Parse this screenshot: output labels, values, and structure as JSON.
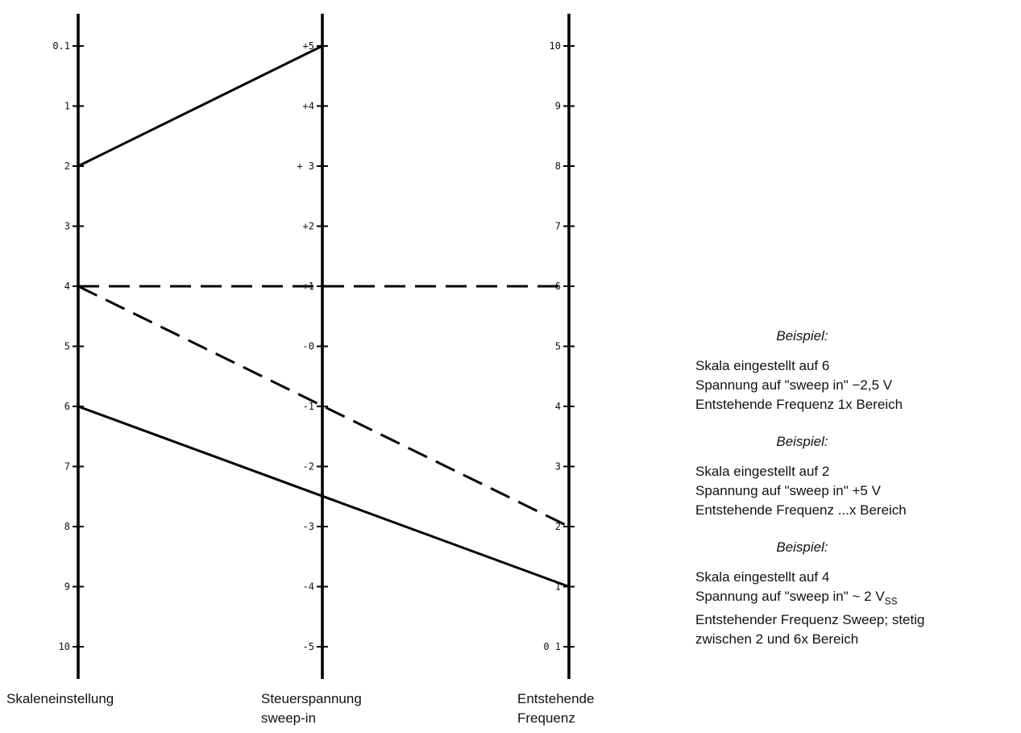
{
  "axes": [
    {
      "id": "skaleneinstellung",
      "caption": [
        "Skaleneinstellung"
      ],
      "ticks": [
        "0.1",
        "1",
        "2",
        "3",
        "4",
        "5",
        "6",
        "7",
        "8",
        "9",
        "10"
      ]
    },
    {
      "id": "steuerspannung",
      "caption": [
        "Steuerspannung",
        "sweep-in"
      ],
      "ticks": [
        "+5",
        "+4",
        "+ 3",
        "+2",
        "+1",
        "-0",
        "-1",
        "-2",
        "-3",
        "-4",
        "-5"
      ]
    },
    {
      "id": "frequenz",
      "caption": [
        "Entstehende",
        "Frequenz"
      ],
      "ticks": [
        "10",
        "9",
        "8",
        "7",
        "6",
        "5",
        "4",
        "3",
        "2",
        "1",
        "0 1"
      ]
    }
  ],
  "axis_values": {
    "skaleneinstellung": [
      0.1,
      1,
      2,
      3,
      4,
      5,
      6,
      7,
      8,
      9,
      10
    ],
    "steuerspannung": [
      5,
      4,
      3,
      2,
      1,
      0,
      -1,
      -2,
      -3,
      -4,
      -5
    ],
    "frequenz": [
      10,
      9,
      8,
      7,
      6,
      5,
      4,
      3,
      2,
      1,
      0.1
    ]
  },
  "lines": [
    {
      "style": "solid",
      "skala": 2,
      "spannung": 5,
      "frequenz": null
    },
    {
      "style": "solid",
      "skala": 6,
      "spannung": -2.5,
      "frequenz": 1
    },
    {
      "style": "dashed",
      "skala": 4,
      "spannung": 1,
      "frequenz": 6
    },
    {
      "style": "dashed",
      "skala": 4,
      "spannung": -1,
      "frequenz": 2
    }
  ],
  "examples": [
    {
      "heading": "Beispiel:",
      "lines": [
        "Skala eingestellt auf 6",
        "Spannung auf \"sweep in\" −2,5 V",
        "Entstehende Frequenz 1x Bereich"
      ]
    },
    {
      "heading": "Beispiel:",
      "lines": [
        "Skala eingestellt auf 2",
        "Spannung auf \"sweep in\" +5 V",
        "Entstehende Frequenz ...x Bereich"
      ]
    },
    {
      "heading": "Beispiel:",
      "lines": [
        "Skala eingestellt auf 4",
        "Spannung auf \"sweep in\" ~ 2 V",
        "Entstehender Frequenz Sweep; stetig",
        "zwischen 2 und 6x Bereich"
      ],
      "subscript": "SS"
    }
  ]
}
